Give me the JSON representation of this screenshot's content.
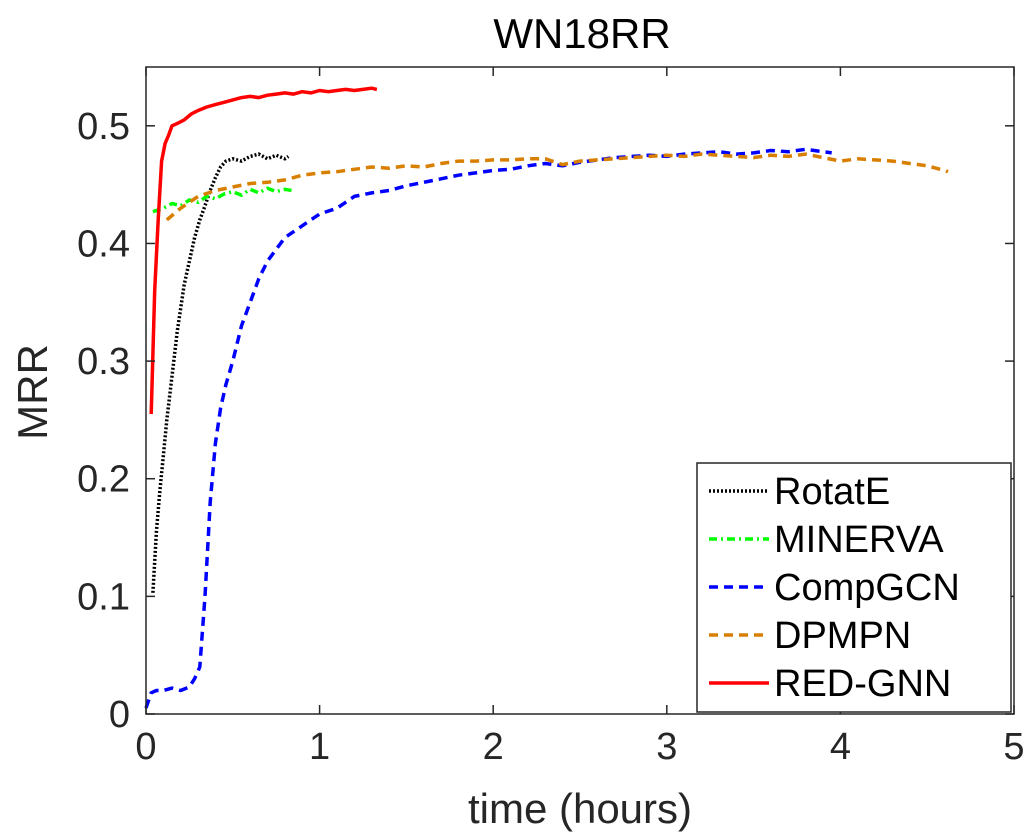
{
  "chart_data": {
    "type": "line",
    "title": "WN18RR",
    "xlabel": "time (hours)",
    "ylabel": "MRR",
    "xlim": [
      0,
      5
    ],
    "ylim": [
      0,
      0.55
    ],
    "xticks": [
      0,
      1,
      2,
      3,
      4,
      5
    ],
    "xtick_labels": [
      "0",
      "1",
      "2",
      "3",
      "4",
      "5"
    ],
    "yticks": [
      0,
      0.1,
      0.2,
      0.3,
      0.4,
      0.5
    ],
    "ytick_labels": [
      "0",
      "0.1",
      "0.2",
      "0.3",
      "0.4",
      "0.5"
    ],
    "grid": false,
    "legend_position": "bottom-right",
    "series": [
      {
        "name": "RotatE",
        "color": "#000000",
        "style": "dotted",
        "x": [
          0.04,
          0.06,
          0.08,
          0.1,
          0.12,
          0.14,
          0.16,
          0.18,
          0.2,
          0.22,
          0.25,
          0.28,
          0.31,
          0.34,
          0.37,
          0.4,
          0.43,
          0.46,
          0.5,
          0.55,
          0.6,
          0.65,
          0.7,
          0.75,
          0.8,
          0.82
        ],
        "y": [
          0.103,
          0.155,
          0.19,
          0.22,
          0.25,
          0.275,
          0.3,
          0.325,
          0.345,
          0.365,
          0.385,
          0.405,
          0.42,
          0.432,
          0.445,
          0.456,
          0.465,
          0.47,
          0.472,
          0.47,
          0.474,
          0.476,
          0.472,
          0.475,
          0.472,
          0.474
        ]
      },
      {
        "name": "MINERVA",
        "color": "#00ff00",
        "style": "dashdot",
        "x": [
          0.04,
          0.1,
          0.15,
          0.2,
          0.25,
          0.3,
          0.35,
          0.4,
          0.45,
          0.5,
          0.55,
          0.6,
          0.65,
          0.7,
          0.75,
          0.8,
          0.84
        ],
        "y": [
          0.427,
          0.43,
          0.434,
          0.432,
          0.437,
          0.435,
          0.44,
          0.438,
          0.442,
          0.444,
          0.441,
          0.446,
          0.443,
          0.447,
          0.444,
          0.446,
          0.445
        ]
      },
      {
        "name": "CompGCN",
        "color": "#0000ff",
        "style": "dashed",
        "x": [
          0.0,
          0.03,
          0.06,
          0.1,
          0.15,
          0.2,
          0.25,
          0.28,
          0.31,
          0.34,
          0.37,
          0.4,
          0.43,
          0.46,
          0.5,
          0.55,
          0.6,
          0.65,
          0.7,
          0.75,
          0.8,
          0.85,
          0.9,
          0.95,
          1.0,
          1.1,
          1.2,
          1.3,
          1.4,
          1.5,
          1.6,
          1.7,
          1.8,
          1.9,
          2.0,
          2.1,
          2.2,
          2.3,
          2.4,
          2.5,
          2.6,
          2.7,
          2.8,
          2.9,
          3.0,
          3.1,
          3.2,
          3.3,
          3.4,
          3.5,
          3.6,
          3.7,
          3.8,
          3.9,
          3.95
        ],
        "y": [
          0.005,
          0.018,
          0.02,
          0.02,
          0.022,
          0.02,
          0.023,
          0.03,
          0.04,
          0.1,
          0.18,
          0.23,
          0.26,
          0.28,
          0.3,
          0.33,
          0.35,
          0.37,
          0.385,
          0.395,
          0.405,
          0.41,
          0.415,
          0.42,
          0.425,
          0.43,
          0.44,
          0.443,
          0.445,
          0.449,
          0.452,
          0.455,
          0.458,
          0.46,
          0.462,
          0.463,
          0.466,
          0.468,
          0.466,
          0.469,
          0.471,
          0.473,
          0.474,
          0.475,
          0.474,
          0.476,
          0.477,
          0.478,
          0.476,
          0.477,
          0.479,
          0.478,
          0.48,
          0.478,
          0.477
        ]
      },
      {
        "name": "DPMPN",
        "color": "#d97f00",
        "style": "dashed",
        "x": [
          0.12,
          0.2,
          0.3,
          0.4,
          0.5,
          0.6,
          0.7,
          0.8,
          0.9,
          1.0,
          1.1,
          1.2,
          1.3,
          1.4,
          1.5,
          1.6,
          1.7,
          1.8,
          1.9,
          2.0,
          2.1,
          2.2,
          2.3,
          2.4,
          2.5,
          2.6,
          2.7,
          2.8,
          2.9,
          3.0,
          3.1,
          3.2,
          3.3,
          3.4,
          3.5,
          3.6,
          3.7,
          3.8,
          3.9,
          4.0,
          4.1,
          4.2,
          4.3,
          4.4,
          4.5,
          4.6,
          4.62
        ],
        "y": [
          0.42,
          0.43,
          0.44,
          0.445,
          0.448,
          0.451,
          0.452,
          0.454,
          0.458,
          0.46,
          0.461,
          0.463,
          0.465,
          0.464,
          0.466,
          0.465,
          0.468,
          0.47,
          0.47,
          0.471,
          0.471,
          0.472,
          0.472,
          0.467,
          0.47,
          0.471,
          0.472,
          0.473,
          0.474,
          0.475,
          0.474,
          0.476,
          0.475,
          0.474,
          0.473,
          0.475,
          0.474,
          0.476,
          0.473,
          0.47,
          0.472,
          0.471,
          0.47,
          0.468,
          0.466,
          0.462,
          0.461
        ]
      },
      {
        "name": "RED-GNN",
        "color": "#ff0000",
        "style": "solid",
        "x": [
          0.03,
          0.05,
          0.07,
          0.09,
          0.11,
          0.13,
          0.15,
          0.18,
          0.22,
          0.26,
          0.3,
          0.35,
          0.4,
          0.45,
          0.5,
          0.55,
          0.6,
          0.65,
          0.7,
          0.75,
          0.8,
          0.85,
          0.9,
          0.95,
          1.0,
          1.05,
          1.1,
          1.15,
          1.2,
          1.25,
          1.3,
          1.33
        ],
        "y": [
          0.255,
          0.36,
          0.42,
          0.47,
          0.485,
          0.492,
          0.5,
          0.502,
          0.505,
          0.51,
          0.513,
          0.516,
          0.518,
          0.52,
          0.522,
          0.524,
          0.525,
          0.524,
          0.526,
          0.527,
          0.528,
          0.527,
          0.529,
          0.528,
          0.53,
          0.529,
          0.53,
          0.531,
          0.53,
          0.531,
          0.532,
          0.531
        ]
      }
    ]
  }
}
